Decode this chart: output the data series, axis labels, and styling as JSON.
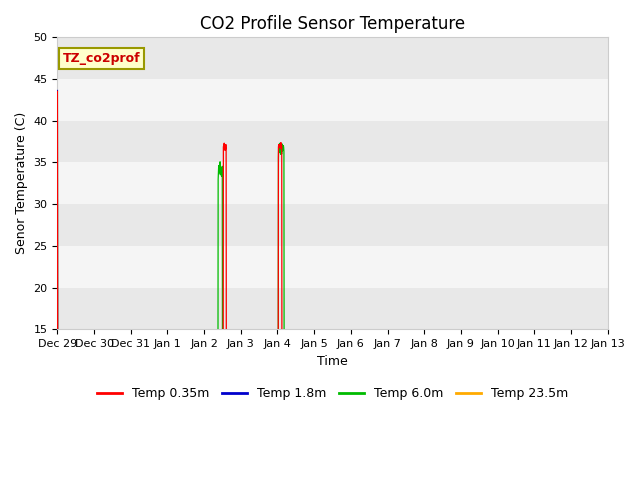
{
  "title": "CO2 Profile Sensor Temperature",
  "ylabel": "Senor Temperature (C)",
  "xlabel": "Time",
  "ylim": [
    15,
    50
  ],
  "xlim": [
    0,
    15
  ],
  "xtick_labels": [
    "Dec 29",
    "Dec 30",
    "Dec 31",
    "Jan 1",
    "Jan 2",
    "Jan 3",
    "Jan 4",
    "Jan 5",
    "Jan 6",
    "Jan 7",
    "Jan 8",
    "Jan 9",
    "Jan 10",
    "Jan 11",
    "Jan 12",
    "Jan 13"
  ],
  "ytick_values": [
    15,
    20,
    25,
    30,
    35,
    40,
    45,
    50
  ],
  "legend_label": "TZ_co2prof",
  "series_labels": [
    "Temp 0.35m",
    "Temp 1.8m",
    "Temp 6.0m",
    "Temp 23.5m"
  ],
  "series_colors": [
    "#ff0000",
    "#0000cc",
    "#00bb00",
    "#ffaa00"
  ],
  "fig_bg_color": "#ffffff",
  "plot_bg_color": "#ffffff",
  "band_colors": [
    "#e8e8e8",
    "#f5f5f5"
  ],
  "grid_color": "#ffffff",
  "title_fontsize": 12,
  "label_fontsize": 9,
  "tick_fontsize": 8
}
